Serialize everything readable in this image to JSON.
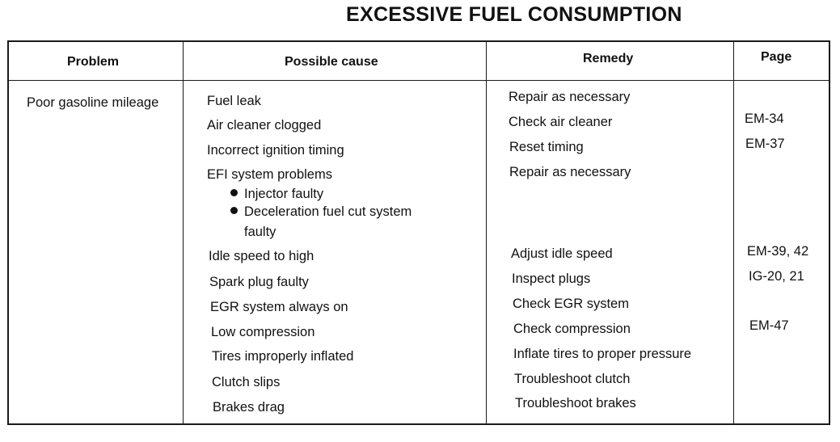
{
  "title": "EXCESSIVE FUEL CONSUMPTION",
  "headers": {
    "problem": "Problem",
    "cause": "Possible cause",
    "remedy": "Remedy",
    "page": "Page"
  },
  "problem": "Poor gasoline mileage",
  "causes": [
    "Fuel leak",
    "Air cleaner clogged",
    "Incorrect ignition timing",
    "EFI system problems",
    "Injector faulty",
    "Deceleration fuel cut system",
    "faulty",
    "Idle speed to high",
    "Spark plug faulty",
    "EGR system always on",
    "Low compression",
    "Tires improperly inflated",
    "Clutch slips",
    "Brakes drag"
  ],
  "remedies": [
    "Repair as necessary",
    "Check air cleaner",
    "Reset timing",
    "Repair as necessary",
    "Adjust idle speed",
    "Inspect plugs",
    "Check EGR system",
    "Check compression",
    "Inflate tires to proper pressure",
    "Troubleshoot clutch",
    "Troubleshoot brakes"
  ],
  "pages": [
    "EM-34",
    "EM-37",
    "EM-39, 42",
    "IG-20, 21",
    "EM-47"
  ]
}
